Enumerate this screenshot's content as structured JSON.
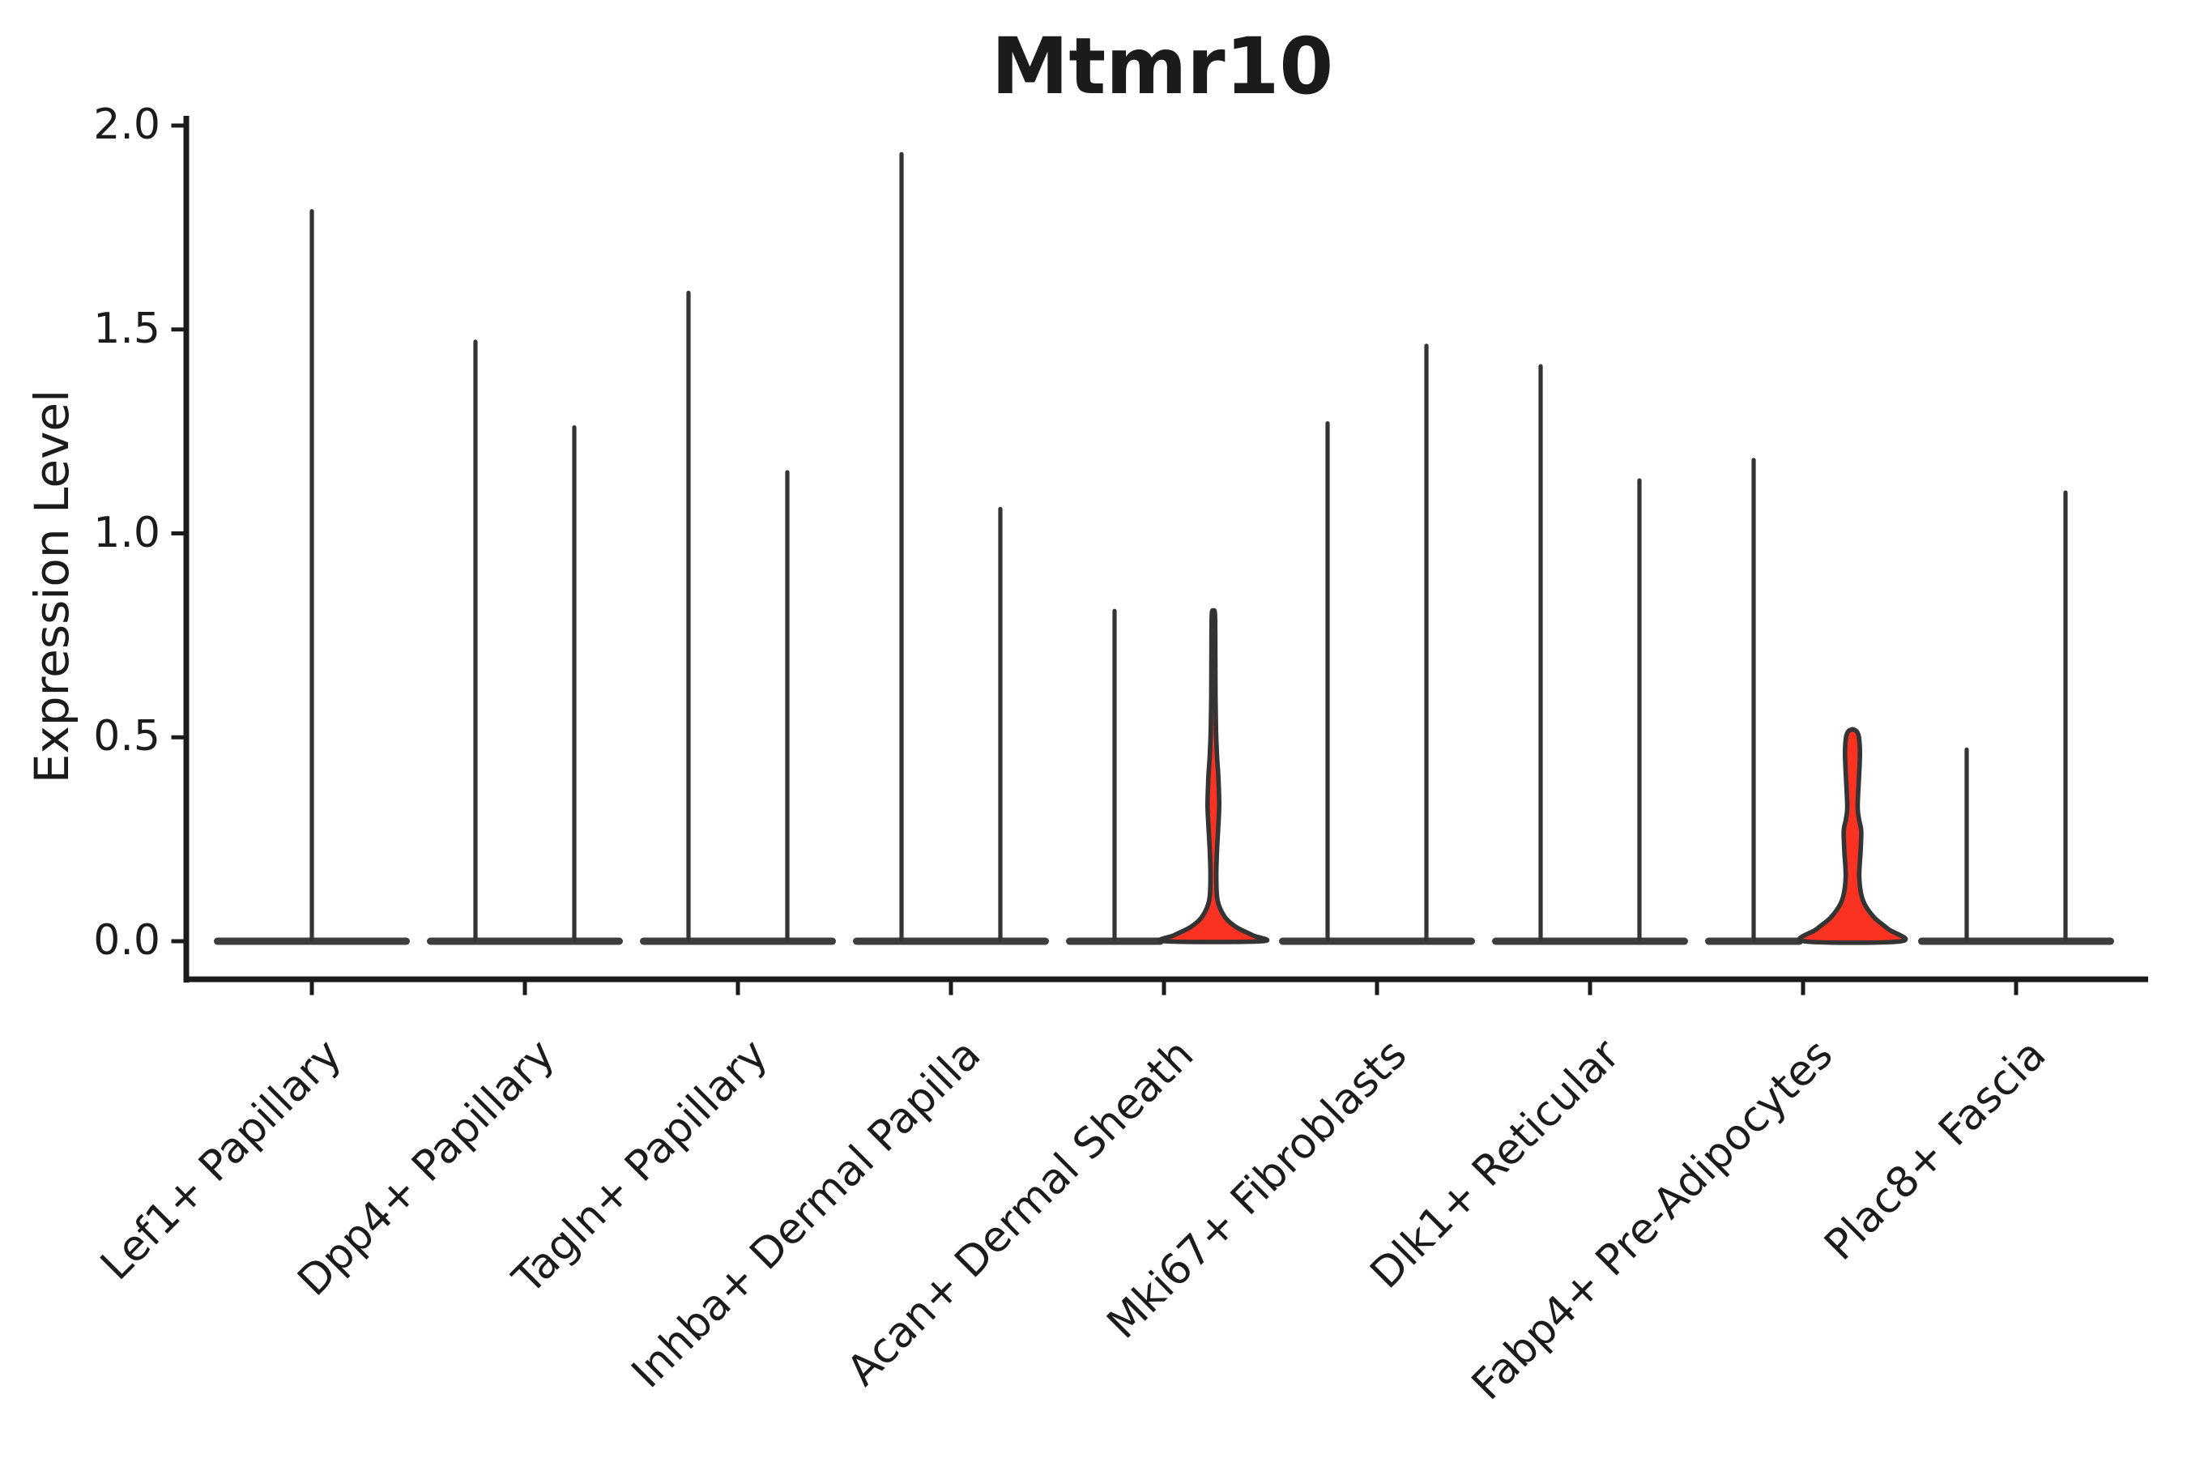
{
  "title": "Mtmr10",
  "ylabel": "Expression Level",
  "axis": {
    "ytick_labels": [
      "0.0",
      "0.5",
      "1.0",
      "1.5",
      "2.0"
    ],
    "ytick_values": [
      0.0,
      0.5,
      1.0,
      1.5,
      2.0
    ],
    "ylim": [
      0,
      2.0
    ]
  },
  "colors": {
    "ink": "#1b1b1b",
    "violin_stroke": "#343434",
    "base_fill": "#3d3d3d",
    "highlight_fill": "#f93222"
  },
  "chart_data": {
    "type": "violin",
    "title": "Mtmr10",
    "xlabel": "",
    "ylabel": "Expression Level",
    "ylim": [
      0,
      2.0
    ],
    "yticks": [
      0.0,
      0.5,
      1.0,
      1.5,
      2.0
    ],
    "grid": false,
    "legend": "none",
    "categories": [
      "Lef1+ Papillary",
      "Dpp4+ Papillary",
      "Tagln+ Papillary",
      "Inhba+ Dermal Papilla",
      "Acan+ Dermal Sheath",
      "Mki67+ Fibroblasts",
      "Dlk1+ Reticular",
      "Fabp4+ Pre-Adipocytes",
      "Plac8+ Fascia"
    ],
    "violins": [
      {
        "category": "Lef1+ Papillary",
        "slot": "center",
        "max_expression": 1.79,
        "fill": "white"
      },
      {
        "category": "Dpp4+ Papillary",
        "slot": "left",
        "max_expression": 1.47,
        "fill": "white"
      },
      {
        "category": "Dpp4+ Papillary",
        "slot": "right",
        "max_expression": 1.26,
        "fill": "white"
      },
      {
        "category": "Tagln+ Papillary",
        "slot": "left",
        "max_expression": 1.59,
        "fill": "white"
      },
      {
        "category": "Tagln+ Papillary",
        "slot": "right",
        "max_expression": 1.15,
        "fill": "white"
      },
      {
        "category": "Inhba+ Dermal Papilla",
        "slot": "left",
        "max_expression": 1.93,
        "fill": "white"
      },
      {
        "category": "Inhba+ Dermal Papilla",
        "slot": "right",
        "max_expression": 1.06,
        "fill": "white"
      },
      {
        "category": "Acan+ Dermal Sheath",
        "slot": "left",
        "max_expression": 0.81,
        "fill": "white"
      },
      {
        "category": "Acan+ Dermal Sheath",
        "slot": "right",
        "max_expression": 0.81,
        "fill": "red",
        "profile": [
          [
            0.81,
            0
          ],
          [
            0.8,
            2
          ],
          [
            0.7,
            2.4
          ],
          [
            0.6,
            2.6
          ],
          [
            0.52,
            3.2
          ],
          [
            0.45,
            4.6
          ],
          [
            0.4,
            6.2
          ],
          [
            0.335,
            7.2
          ],
          [
            0.28,
            6.0
          ],
          [
            0.22,
            4.4
          ],
          [
            0.16,
            3.6
          ],
          [
            0.1,
            5.2
          ],
          [
            0.06,
            14
          ],
          [
            0.035,
            28
          ],
          [
            0.015,
            48
          ],
          [
            0.0,
            60
          ]
        ]
      },
      {
        "category": "Mki67+ Fibroblasts",
        "slot": "left",
        "max_expression": 1.27,
        "fill": "white"
      },
      {
        "category": "Mki67+ Fibroblasts",
        "slot": "right",
        "max_expression": 1.46,
        "fill": "white"
      },
      {
        "category": "Dlk1+ Reticular",
        "slot": "left",
        "max_expression": 1.41,
        "fill": "white"
      },
      {
        "category": "Dlk1+ Reticular",
        "slot": "right",
        "max_expression": 1.13,
        "fill": "white"
      },
      {
        "category": "Fabp4+ Pre-Adipocytes",
        "slot": "left",
        "max_expression": 1.18,
        "fill": "white"
      },
      {
        "category": "Fabp4+ Pre-Adipocytes",
        "slot": "right",
        "max_expression": 0.52,
        "fill": "red",
        "profile": [
          [
            0.52,
            0
          ],
          [
            0.515,
            5
          ],
          [
            0.5,
            8
          ],
          [
            0.46,
            9.2
          ],
          [
            0.4,
            8.0
          ],
          [
            0.33,
            6.4
          ],
          [
            0.3,
            8.0
          ],
          [
            0.27,
            10.8
          ],
          [
            0.22,
            10.0
          ],
          [
            0.155,
            8.4
          ],
          [
            0.1,
            13
          ],
          [
            0.06,
            26
          ],
          [
            0.03,
            44
          ],
          [
            0.0,
            60
          ]
        ]
      },
      {
        "category": "Plac8+ Fascia",
        "slot": "left",
        "max_expression": 0.47,
        "fill": "white"
      },
      {
        "category": "Plac8+ Fascia",
        "slot": "right",
        "max_expression": 1.1,
        "fill": "white"
      }
    ],
    "note": "All groups have most density at 0 (flat dark bases); thin spikes mark sparse expressing cells up to the max. Only the two red violins show visible density above 0."
  }
}
